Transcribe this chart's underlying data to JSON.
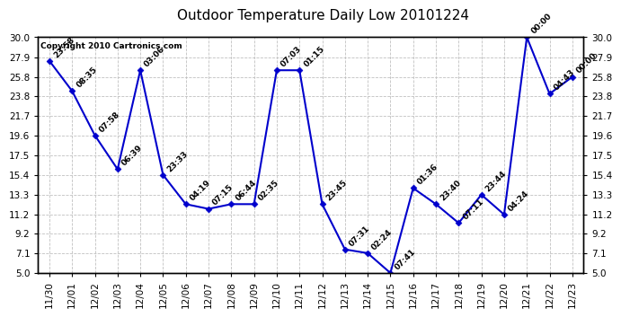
{
  "title": "Outdoor Temperature Daily Low 20101224",
  "copyright": "Copyright 2010 Cartronics.com",
  "x_labels": [
    "11/30",
    "12/01",
    "12/02",
    "12/03",
    "12/04",
    "12/05",
    "12/06",
    "12/07",
    "12/08",
    "12/09",
    "12/10",
    "12/11",
    "12/12",
    "12/13",
    "12/14",
    "12/15",
    "12/16",
    "12/17",
    "12/18",
    "12/19",
    "12/20",
    "12/21",
    "12/22",
    "12/23"
  ],
  "y_values": [
    27.5,
    24.3,
    19.6,
    16.0,
    26.5,
    15.4,
    12.3,
    11.8,
    12.3,
    12.3,
    26.5,
    26.5,
    12.3,
    7.5,
    7.1,
    5.0,
    14.0,
    12.3,
    10.3,
    13.3,
    11.2,
    30.0,
    24.0,
    25.8
  ],
  "time_labels": [
    "23:58",
    "08:35",
    "07:58",
    "06:39",
    "03:06",
    "23:33",
    "04:19",
    "07:15",
    "06:44",
    "02:35",
    "07:03",
    "01:15",
    "23:45",
    "07:31",
    "02:24",
    "07:41",
    "01:36",
    "23:40",
    "07:11",
    "23:44",
    "04:24",
    "00:00",
    "04:43",
    "00:00"
  ],
  "ylim": [
    5.0,
    30.0
  ],
  "y_ticks": [
    5.0,
    7.1,
    9.2,
    11.2,
    13.3,
    15.4,
    17.5,
    19.6,
    21.7,
    23.8,
    25.8,
    27.9,
    30.0
  ],
  "line_color": "#0000cc",
  "marker_color": "#0000cc",
  "background_color": "#ffffff",
  "grid_color": "#c0c0c0",
  "title_fontsize": 11,
  "tick_fontsize": 7.5,
  "annot_fontsize": 6.5
}
